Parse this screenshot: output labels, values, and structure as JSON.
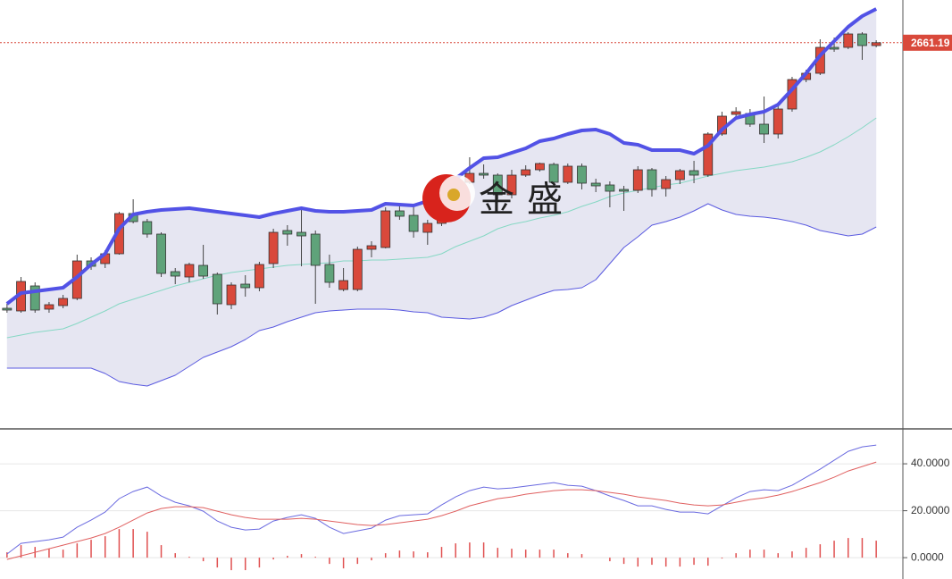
{
  "chart_data": [
    {
      "type": "candlestick",
      "watermark": "金盛",
      "ylim": [
        2231,
        2709
      ],
      "last_price": 2661.19,
      "up_color": "#d9493b",
      "down_color": "#5fa37a",
      "band_fill": "#e6e6f2",
      "upper_color": "#5252e6",
      "mid_color": "#86d8c4",
      "lower_color": "#5a5ae0",
      "last_color": "#d9493b",
      "open": [
        2364,
        2361,
        2389,
        2363,
        2367,
        2375,
        2417,
        2414,
        2425,
        2470,
        2461,
        2447,
        2405,
        2399,
        2412,
        2402,
        2368,
        2391,
        2387,
        2414,
        2451,
        2449,
        2447,
        2413,
        2385,
        2385,
        2430,
        2432,
        2473,
        2468,
        2449,
        2459,
        2487,
        2505,
        2515,
        2513,
        2491,
        2513,
        2519,
        2525,
        2505,
        2523,
        2504,
        2502,
        2497,
        2496,
        2519,
        2498,
        2508,
        2518,
        2513,
        2559,
        2581,
        2582,
        2570,
        2559,
        2587,
        2620,
        2627,
        2656,
        2656,
        2671,
        2658
      ],
      "high": [
        2369,
        2399,
        2393,
        2371,
        2379,
        2424,
        2421,
        2429,
        2472,
        2486,
        2464,
        2449,
        2409,
        2415,
        2435,
        2404,
        2393,
        2401,
        2416,
        2453,
        2457,
        2477,
        2451,
        2424,
        2409,
        2433,
        2439,
        2477,
        2478,
        2481,
        2463,
        2491,
        2504,
        2533,
        2525,
        2515,
        2519,
        2524,
        2527,
        2527,
        2526,
        2526,
        2509,
        2506,
        2501,
        2523,
        2521,
        2512,
        2520,
        2529,
        2561,
        2584,
        2589,
        2587,
        2601,
        2591,
        2623,
        2631,
        2665,
        2667,
        2673,
        2673,
        2664
      ],
      "low": [
        2359,
        2359,
        2359,
        2359,
        2364,
        2373,
        2407,
        2409,
        2424,
        2459,
        2443,
        2399,
        2391,
        2393,
        2397,
        2357,
        2363,
        2377,
        2383,
        2409,
        2434,
        2411,
        2369,
        2387,
        2383,
        2383,
        2421,
        2431,
        2463,
        2443,
        2435,
        2456,
        2483,
        2503,
        2509,
        2486,
        2487,
        2511,
        2517,
        2501,
        2503,
        2497,
        2494,
        2477,
        2473,
        2493,
        2489,
        2489,
        2503,
        2504,
        2511,
        2557,
        2577,
        2567,
        2549,
        2554,
        2584,
        2617,
        2625,
        2651,
        2654,
        2642,
        2656
      ],
      "close": [
        2362,
        2394,
        2362,
        2368,
        2375,
        2417,
        2411,
        2425,
        2470,
        2461,
        2447,
        2403,
        2400,
        2413,
        2400,
        2369,
        2390,
        2387,
        2413,
        2449,
        2447,
        2445,
        2412,
        2393,
        2395,
        2430,
        2434,
        2473,
        2467,
        2450,
        2459,
        2487,
        2499,
        2515,
        2513,
        2491,
        2513,
        2519,
        2526,
        2505,
        2523,
        2504,
        2501,
        2495,
        2495,
        2519,
        2497,
        2508,
        2518,
        2513,
        2559,
        2579,
        2584,
        2570,
        2559,
        2587,
        2620,
        2627,
        2656,
        2654,
        2671,
        2658,
        2661.19
      ],
      "upper": [
        2369,
        2381,
        2383,
        2385,
        2387,
        2399,
        2413,
        2425,
        2453,
        2469,
        2472,
        2474,
        2475,
        2476,
        2474,
        2472,
        2470,
        2468,
        2466,
        2470,
        2473,
        2476,
        2473,
        2472,
        2472,
        2473,
        2474,
        2481,
        2480,
        2479,
        2484,
        2497,
        2509,
        2521,
        2532,
        2533,
        2538,
        2543,
        2551,
        2554,
        2559,
        2563,
        2564,
        2559,
        2549,
        2547,
        2541,
        2541,
        2541,
        2537,
        2546,
        2564,
        2577,
        2581,
        2584,
        2592,
        2609,
        2627,
        2647,
        2663,
        2679,
        2691,
        2699
      ],
      "mid": [
        2331,
        2334,
        2337,
        2339,
        2341,
        2347,
        2354,
        2361,
        2369,
        2374,
        2379,
        2384,
        2389,
        2393,
        2397,
        2401,
        2404,
        2406,
        2408,
        2410,
        2412,
        2413,
        2414,
        2415,
        2417,
        2417,
        2418,
        2418,
        2419,
        2420,
        2421,
        2425,
        2433,
        2439,
        2445,
        2453,
        2458,
        2461,
        2465,
        2468,
        2472,
        2478,
        2483,
        2489,
        2493,
        2496,
        2499,
        2502,
        2504,
        2508,
        2512,
        2515,
        2518,
        2520,
        2522,
        2525,
        2528,
        2533,
        2539,
        2547,
        2556,
        2566,
        2577
      ],
      "lower": [
        2297,
        2297,
        2297,
        2297,
        2297,
        2297,
        2297,
        2291,
        2282,
        2279,
        2277,
        2283,
        2289,
        2299,
        2309,
        2315,
        2321,
        2329,
        2339,
        2343,
        2349,
        2354,
        2359,
        2361,
        2362,
        2363,
        2363,
        2363,
        2362,
        2360,
        2359,
        2354,
        2353,
        2352,
        2354,
        2359,
        2367,
        2373,
        2379,
        2384,
        2385,
        2387,
        2396,
        2414,
        2432,
        2444,
        2457,
        2461,
        2466,
        2473,
        2481,
        2474,
        2469,
        2467,
        2466,
        2464,
        2461,
        2457,
        2451,
        2448,
        2445,
        2447,
        2455
      ]
    },
    {
      "type": "macd",
      "ylim": [
        -9.1,
        54.5
      ],
      "yticks": [
        {
          "value": 0,
          "label": "0.0000"
        },
        {
          "value": 20,
          "label": "20.0000"
        },
        {
          "value": 40,
          "label": "40.0000"
        }
      ],
      "grid": true,
      "series": [
        {
          "color": "#6a6ae0",
          "values": [
            1.52,
            6.1,
            6.86,
            7.62,
            8.76,
            12.95,
            16.0,
            19.43,
            25.14,
            28.19,
            30.1,
            26.29,
            23.62,
            22.1,
            19.81,
            15.62,
            12.95,
            11.81,
            12.19,
            15.62,
            17.14,
            18.29,
            16.76,
            12.95,
            10.29,
            11.43,
            12.57,
            16.0,
            17.9,
            18.29,
            18.67,
            22.48,
            25.9,
            28.57,
            30.1,
            29.33,
            29.71,
            30.48,
            31.24,
            32.0,
            30.86,
            30.48,
            28.57,
            26.29,
            24.38,
            22.1,
            22.1,
            20.57,
            19.43,
            19.43,
            18.67,
            22.1,
            25.52,
            28.19,
            28.95,
            28.57,
            30.86,
            34.29,
            37.71,
            41.52,
            45.33,
            47.24,
            48.0
          ]
        },
        {
          "color": "#e06060",
          "values": [
            -0.76,
            0.76,
            2.29,
            3.81,
            5.33,
            6.86,
            8.38,
            10.29,
            12.95,
            16.0,
            19.05,
            20.95,
            21.71,
            21.71,
            21.33,
            19.81,
            18.29,
            17.14,
            16.38,
            16.38,
            16.38,
            16.76,
            16.38,
            15.62,
            14.86,
            14.1,
            13.71,
            14.1,
            14.86,
            15.62,
            16.38,
            17.9,
            19.81,
            22.1,
            23.62,
            25.14,
            25.9,
            27.05,
            27.81,
            28.57,
            28.95,
            28.95,
            28.57,
            27.81,
            27.05,
            25.9,
            25.14,
            24.38,
            23.24,
            22.48,
            22.1,
            22.48,
            23.62,
            24.76,
            25.52,
            26.67,
            28.19,
            30.1,
            32.0,
            34.29,
            36.95,
            38.86,
            40.76
          ]
        }
      ],
      "histogram": {
        "color": "#e05050",
        "values": [
          2.28,
          5.34,
          4.57,
          3.81,
          3.43,
          6.09,
          7.62,
          9.14,
          12.19,
          12.19,
          11.05,
          5.34,
          1.91,
          0.39,
          -1.52,
          -4.19,
          -5.34,
          -5.33,
          -4.19,
          -0.76,
          0.76,
          1.53,
          0.38,
          -2.67,
          -4.57,
          -2.67,
          -1.14,
          1.9,
          3.04,
          2.67,
          2.29,
          4.58,
          6.09,
          6.47,
          6.48,
          4.19,
          3.81,
          3.43,
          3.43,
          3.43,
          1.91,
          1.53,
          0,
          -1.52,
          -2.67,
          -3.8,
          -3.04,
          -3.81,
          -3.81,
          -3.05,
          -3.43,
          -0.38,
          1.9,
          3.43,
          3.43,
          1.9,
          2.67,
          4.19,
          5.71,
          7.23,
          8.38,
          8.38,
          7.24
        ]
      }
    }
  ]
}
